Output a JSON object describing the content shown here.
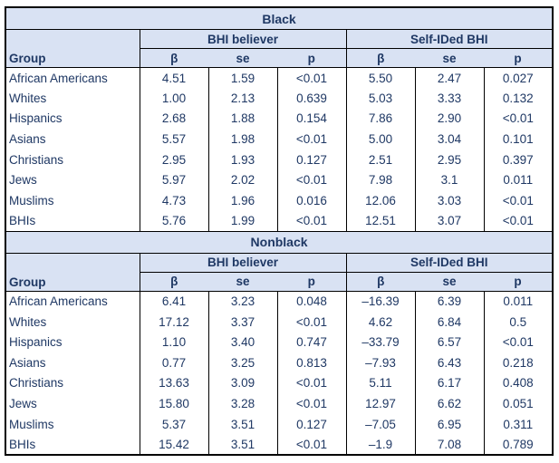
{
  "colors": {
    "header_bg": "#d9e2f3",
    "text": "#1f3864",
    "border": "#000000",
    "row_bg": "#ffffff"
  },
  "chart_data": {
    "type": "table",
    "sections": [
      {
        "title": "Black",
        "group_col_header": "Group",
        "col_groups": [
          "BHI believer",
          "Self-IDed BHI"
        ],
        "stat_headers": [
          "β",
          "se",
          "p"
        ],
        "rows": [
          [
            "African Americans",
            "4.51",
            "1.59",
            "<0.01",
            "5.50",
            "2.47",
            "0.027"
          ],
          [
            "Whites",
            "1.00",
            "2.13",
            "0.639",
            "5.03",
            "3.33",
            "0.132"
          ],
          [
            "Hispanics",
            "2.68",
            "1.88",
            "0.154",
            "7.86",
            "2.90",
            "<0.01"
          ],
          [
            "Asians",
            "5.57",
            "1.98",
            "<0.01",
            "5.00",
            "3.04",
            "0.101"
          ],
          [
            "Christians",
            "2.95",
            "1.93",
            "0.127",
            "2.51",
            "2.95",
            "0.397"
          ],
          [
            "Jews",
            "5.97",
            "2.02",
            "<0.01",
            "7.98",
            "3.1",
            "0.011"
          ],
          [
            "Muslims",
            "4.73",
            "1.96",
            "0.016",
            "12.06",
            "3.03",
            "<0.01"
          ],
          [
            "BHIs",
            "5.76",
            "1.99",
            "<0.01",
            "12.51",
            "3.07",
            "<0.01"
          ]
        ]
      },
      {
        "title": "Nonblack",
        "group_col_header": "Group",
        "col_groups": [
          "BHI believer",
          "Self-IDed BHI"
        ],
        "stat_headers": [
          "β",
          "se",
          "p"
        ],
        "rows": [
          [
            "African Americans",
            "6.41",
            "3.23",
            "0.048",
            "–16.39",
            "6.39",
            "0.011"
          ],
          [
            "Whites",
            "17.12",
            "3.37",
            "<0.01",
            "4.62",
            "6.84",
            "0.5"
          ],
          [
            "Hispanics",
            "1.10",
            "3.40",
            "0.747",
            "–33.79",
            "6.57",
            "<0.01"
          ],
          [
            "Asians",
            "0.77",
            "3.25",
            "0.813",
            "–7.93",
            "6.43",
            "0.218"
          ],
          [
            "Christians",
            "13.63",
            "3.09",
            "<0.01",
            "5.11",
            "6.17",
            "0.408"
          ],
          [
            "Jews",
            "15.80",
            "3.28",
            "<0.01",
            "12.97",
            "6.62",
            "0.051"
          ],
          [
            "Muslims",
            "5.37",
            "3.51",
            "0.127",
            "–7.05",
            "6.95",
            "0.311"
          ],
          [
            "BHIs",
            "15.42",
            "3.51",
            "<0.01",
            "–1.9",
            "7.08",
            "0.789"
          ]
        ]
      }
    ]
  }
}
